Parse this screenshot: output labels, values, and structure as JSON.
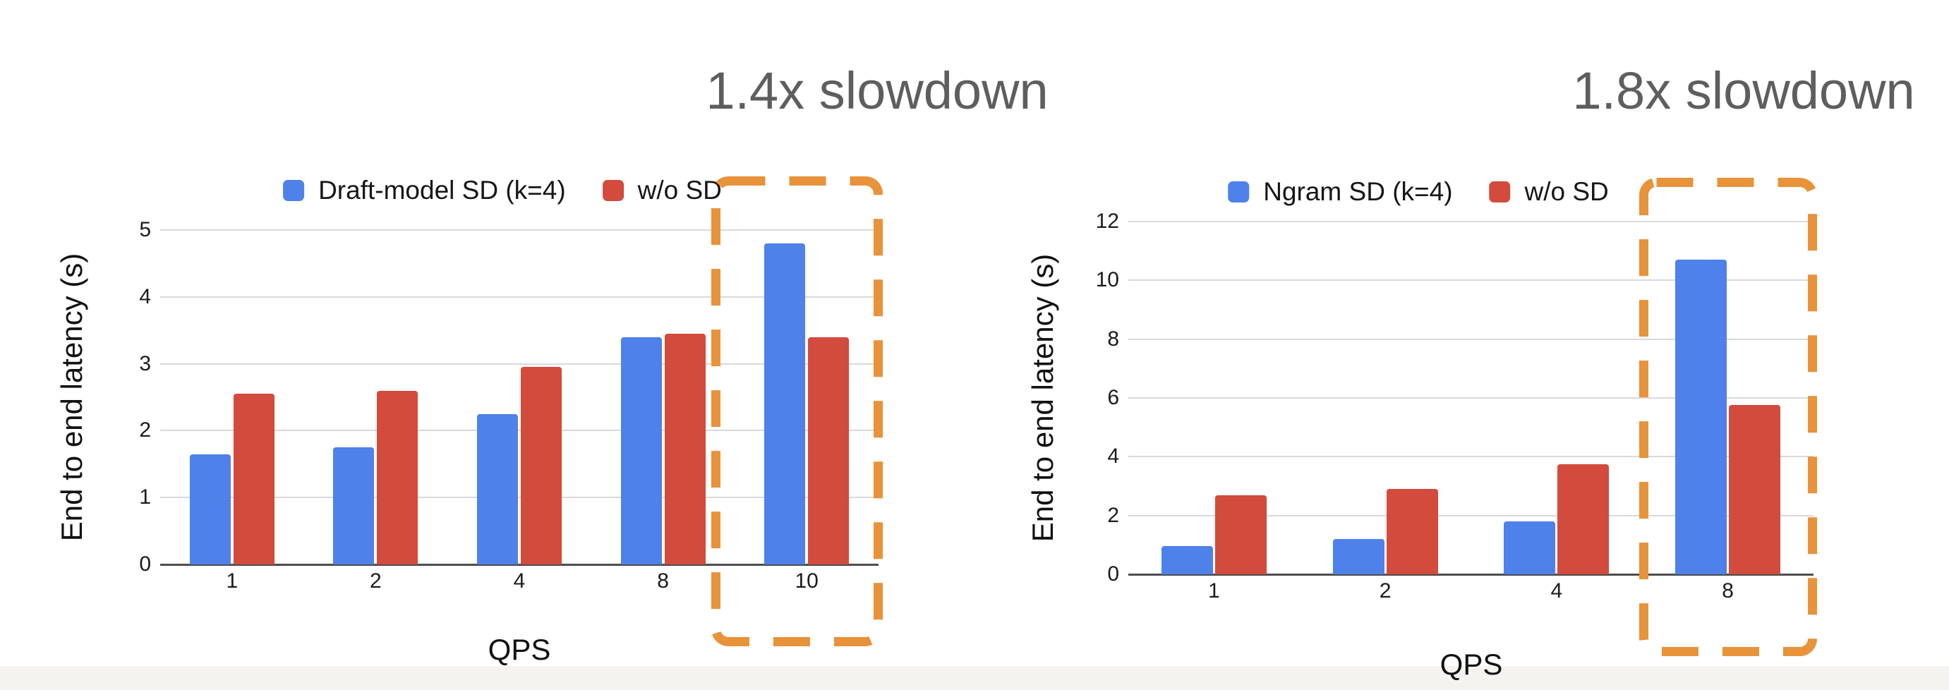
{
  "page": {
    "background_color": "#ffffff",
    "bottom_strip_color": "#f5f3ef"
  },
  "colors": {
    "series_blue": "#4e81e9",
    "series_red": "#d24b3c",
    "highlight_orange": "#e8923a",
    "annotation_gray": "#5e5e5e",
    "gridline_gray": "#d9d9d9",
    "axis_line_gray": "#4d4d4d"
  },
  "chart_data": [
    {
      "type": "bar",
      "title": "1.4x slowdown",
      "categories": [
        "1",
        "2",
        "4",
        "8",
        "10"
      ],
      "series": [
        {
          "name": "Draft-model SD (k=4)",
          "color": "#4e81e9",
          "values": [
            1.65,
            1.75,
            2.25,
            3.4,
            4.8
          ]
        },
        {
          "name": "w/o SD",
          "color": "#d24b3c",
          "values": [
            2.55,
            2.6,
            2.95,
            3.45,
            3.4
          ]
        }
      ],
      "xlabel": "QPS",
      "ylabel": "End to end latency (s)",
      "ylim": [
        0,
        5
      ],
      "yticks": [
        "0",
        "1",
        "2",
        "3",
        "4",
        "5"
      ],
      "grid": true,
      "legend_position": "top",
      "highlight": {
        "category": "10",
        "style": "orange-dashed-box",
        "label": "1.4x slowdown"
      }
    },
    {
      "type": "bar",
      "title": "1.8x slowdown",
      "categories": [
        "1",
        "2",
        "4",
        "8"
      ],
      "series": [
        {
          "name": "Ngram SD (k=4)",
          "color": "#4e81e9",
          "values": [
            0.95,
            1.2,
            1.8,
            10.7
          ]
        },
        {
          "name": "w/o SD",
          "color": "#d24b3c",
          "values": [
            2.7,
            2.9,
            3.75,
            5.75
          ]
        }
      ],
      "xlabel": "QPS",
      "ylabel": "End to end latency (s)",
      "ylim": [
        0,
        12
      ],
      "yticks": [
        "0",
        "2",
        "4",
        "6",
        "8",
        "10",
        "12"
      ],
      "grid": true,
      "legend_position": "top",
      "highlight": {
        "category": "8",
        "style": "orange-dashed-box",
        "label": "1.8x slowdown"
      }
    }
  ]
}
